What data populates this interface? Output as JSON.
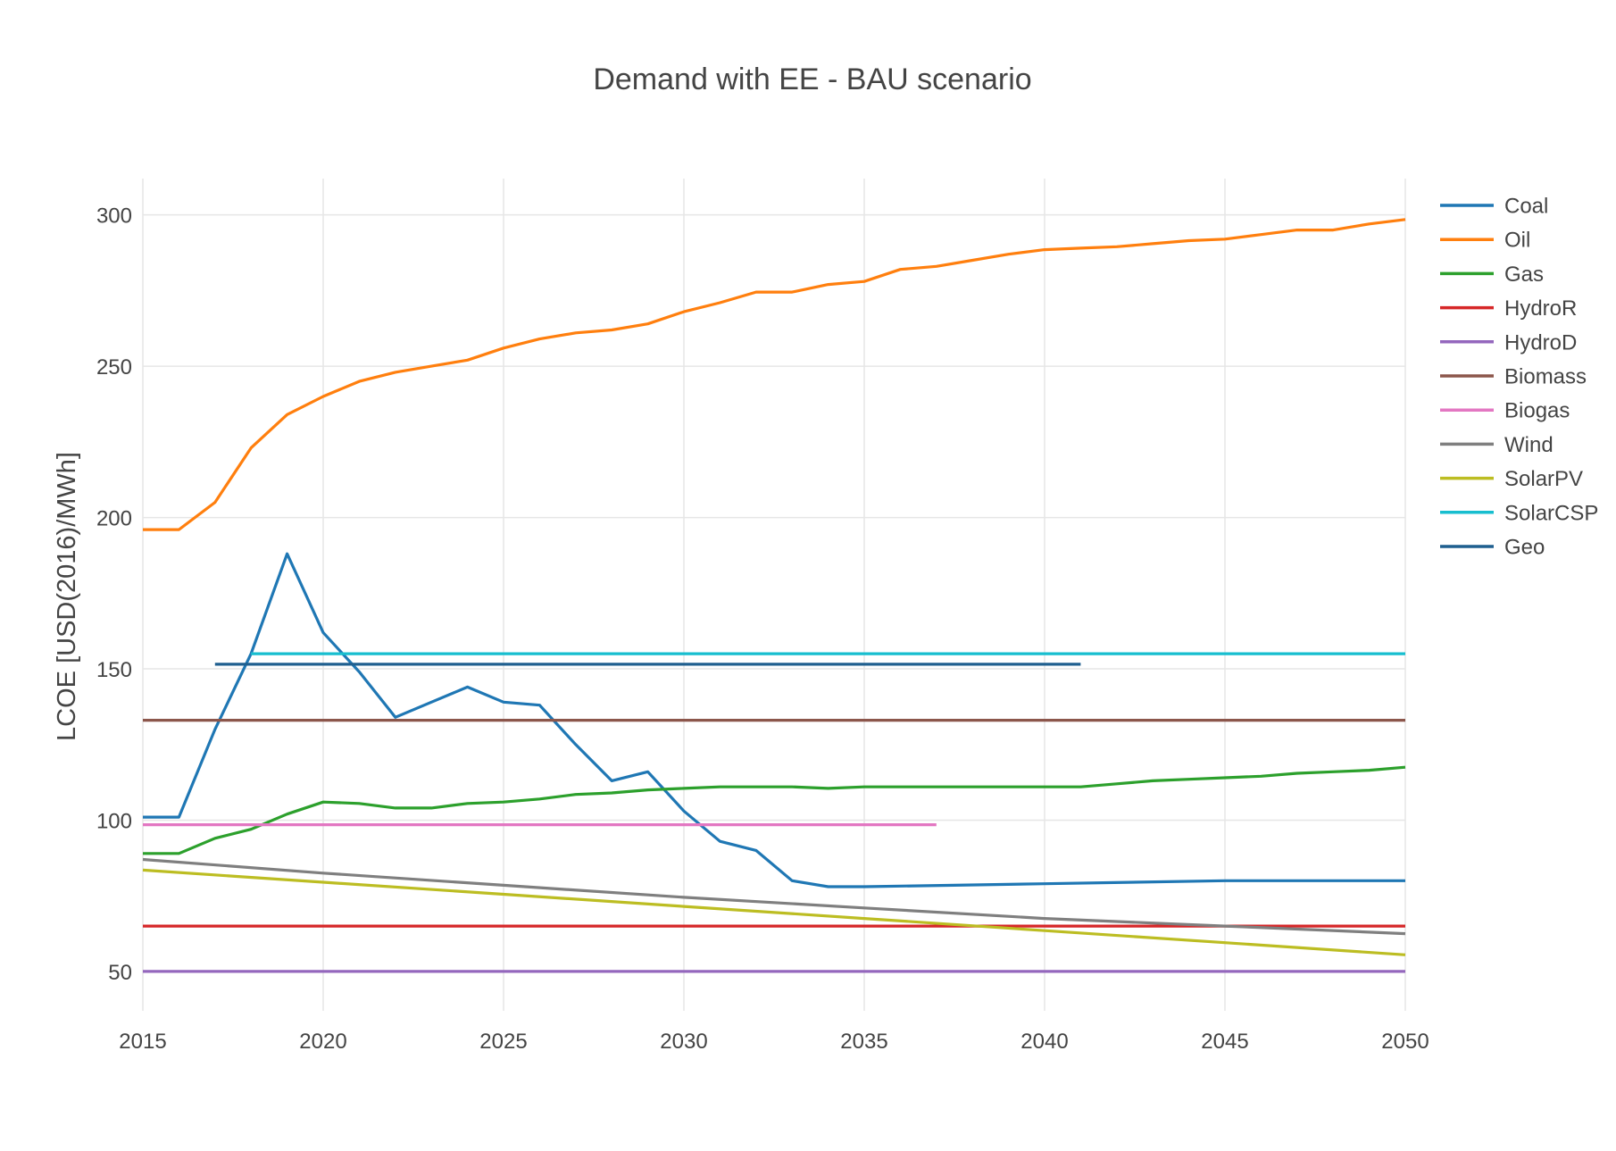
{
  "chart_data": {
    "type": "line",
    "title": "Demand with EE - BAU scenario",
    "xlabel": "",
    "ylabel": "LCOE [USD(2016)/MWh]",
    "xlim": [
      2015,
      2050
    ],
    "ylim": [
      37,
      312
    ],
    "x_ticks": [
      2015,
      2020,
      2025,
      2030,
      2035,
      2040,
      2045,
      2050
    ],
    "y_ticks": [
      50,
      100,
      150,
      200,
      250,
      300
    ],
    "grid": true,
    "legend_position": "right",
    "series": [
      {
        "name": "Coal",
        "color": "#1f77b4",
        "x": [
          2015,
          2016,
          2017,
          2018,
          2019,
          2020,
          2021,
          2022,
          2023,
          2024,
          2025,
          2026,
          2027,
          2028,
          2029,
          2030,
          2031,
          2032,
          2033,
          2034,
          2035,
          2040,
          2045,
          2047,
          2048,
          2050
        ],
        "y": [
          101,
          101,
          130,
          155,
          188,
          162,
          149,
          134,
          139,
          144,
          139,
          138,
          125,
          113,
          116,
          103,
          93,
          90,
          80,
          78,
          78,
          79,
          80,
          80,
          80,
          80
        ]
      },
      {
        "name": "Oil",
        "color": "#ff7f0e",
        "x": [
          2015,
          2016,
          2017,
          2018,
          2019,
          2020,
          2021,
          2022,
          2023,
          2024,
          2025,
          2026,
          2027,
          2028,
          2029,
          2030,
          2031,
          2032,
          2033,
          2034,
          2035,
          2036,
          2037,
          2038,
          2039,
          2040,
          2041,
          2042,
          2043,
          2044,
          2045,
          2046,
          2047,
          2048,
          2049,
          2050
        ],
        "y": [
          196,
          196,
          205,
          223,
          234,
          240,
          245,
          248,
          250,
          252,
          256,
          259,
          261,
          262,
          264,
          268,
          271,
          274.5,
          274.5,
          277,
          278,
          282,
          283,
          285,
          287,
          288.5,
          289,
          289.5,
          290.5,
          291.5,
          292,
          293.5,
          295,
          295,
          297,
          298.5
        ]
      },
      {
        "name": "Gas",
        "color": "#2ca02c",
        "x": [
          2015,
          2016,
          2017,
          2018,
          2019,
          2020,
          2021,
          2022,
          2023,
          2024,
          2025,
          2026,
          2027,
          2028,
          2029,
          2030,
          2031,
          2032,
          2033,
          2034,
          2035,
          2036,
          2037,
          2038,
          2039,
          2040,
          2041,
          2042,
          2043,
          2044,
          2045,
          2046,
          2047,
          2048,
          2049,
          2050
        ],
        "y": [
          89,
          89,
          94,
          97,
          102,
          106,
          105.5,
          104,
          104,
          105.5,
          106,
          107,
          108.5,
          109,
          110,
          110.5,
          111,
          111,
          111,
          110.5,
          111,
          111,
          111,
          111,
          111,
          111,
          111,
          112,
          113,
          113.5,
          114,
          114.5,
          115.5,
          116,
          116.5,
          117.5
        ]
      },
      {
        "name": "HydroR",
        "color": "#d62728",
        "x": [
          2015,
          2050
        ],
        "y": [
          65,
          65
        ]
      },
      {
        "name": "HydroD",
        "color": "#9467bd",
        "x": [
          2015,
          2050
        ],
        "y": [
          50,
          50
        ]
      },
      {
        "name": "Biomass",
        "color": "#8c564b",
        "x": [
          2015,
          2050
        ],
        "y": [
          133,
          133
        ]
      },
      {
        "name": "Biogas",
        "color": "#e377c2",
        "x": [
          2015,
          2037
        ],
        "y": [
          98.5,
          98.5
        ]
      },
      {
        "name": "Wind",
        "color": "#7f7f7f",
        "x": [
          2015,
          2020,
          2025,
          2030,
          2035,
          2040,
          2045,
          2050
        ],
        "y": [
          87,
          82.5,
          78.5,
          74.5,
          71,
          67.5,
          65,
          62.5
        ]
      },
      {
        "name": "SolarPV",
        "color": "#bcbd22",
        "x": [
          2015,
          2020,
          2025,
          2030,
          2035,
          2040,
          2045,
          2050
        ],
        "y": [
          83.5,
          79.5,
          75.5,
          71.5,
          67.5,
          63.5,
          59.5,
          55.5
        ]
      },
      {
        "name": "SolarCSP",
        "color": "#17becf",
        "x": [
          2018,
          2050
        ],
        "y": [
          155,
          155
        ]
      },
      {
        "name": "Geo",
        "color": "#1f5f8f",
        "x": [
          2017,
          2041
        ],
        "y": [
          151.5,
          151.5
        ]
      }
    ]
  }
}
